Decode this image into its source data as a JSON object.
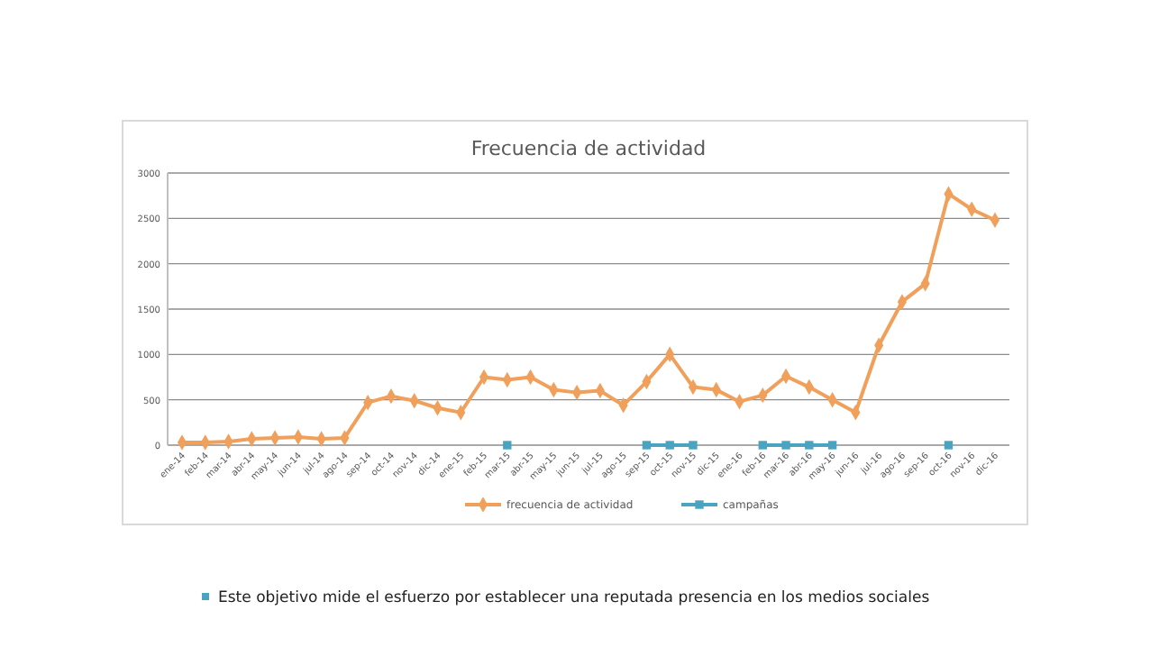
{
  "chart_data": {
    "type": "line",
    "title": "Frecuencia de actividad",
    "categories": [
      "ene-14",
      "feb-14",
      "mar-14",
      "abr-14",
      "may-14",
      "jun-14",
      "jul-14",
      "ago-14",
      "sep-14",
      "oct-14",
      "nov-14",
      "dic-14",
      "ene-15",
      "feb-15",
      "mar-15",
      "abr-15",
      "may-15",
      "jun-15",
      "jul-15",
      "ago-15",
      "sep-15",
      "oct-15",
      "nov-15",
      "dic-15",
      "ene-16",
      "feb-16",
      "mar-16",
      "abr-16",
      "may-16",
      "jun-16",
      "jul-16",
      "ago-16",
      "sep-16",
      "oct-16",
      "nov-16",
      "dic-16"
    ],
    "series": [
      {
        "name": "frecuencia de actividad",
        "color": "#f0a05a",
        "marker": "diamond",
        "values": [
          30,
          30,
          40,
          70,
          80,
          90,
          70,
          80,
          470,
          540,
          490,
          410,
          360,
          750,
          720,
          750,
          610,
          580,
          600,
          440,
          700,
          1000,
          640,
          610,
          480,
          550,
          760,
          640,
          500,
          360,
          1100,
          1580,
          1780,
          2770,
          2600,
          2480
        ]
      },
      {
        "name": "campañas",
        "color": "#4aa3c0",
        "marker": "square",
        "values": [
          null,
          null,
          null,
          null,
          null,
          null,
          null,
          null,
          null,
          null,
          null,
          null,
          null,
          null,
          0,
          null,
          null,
          null,
          null,
          null,
          0,
          0,
          0,
          null,
          null,
          0,
          0,
          0,
          0,
          null,
          null,
          null,
          null,
          0,
          null,
          null
        ]
      }
    ],
    "ylim": [
      0,
      3000
    ],
    "yticks": [
      0,
      500,
      1000,
      1500,
      2000,
      2500,
      3000
    ],
    "grid": "y",
    "legend": "bottom",
    "annotations": [
      "Este objetivo mide el esfuerzo por establecer una reputada presencia en los medios sociales"
    ]
  }
}
